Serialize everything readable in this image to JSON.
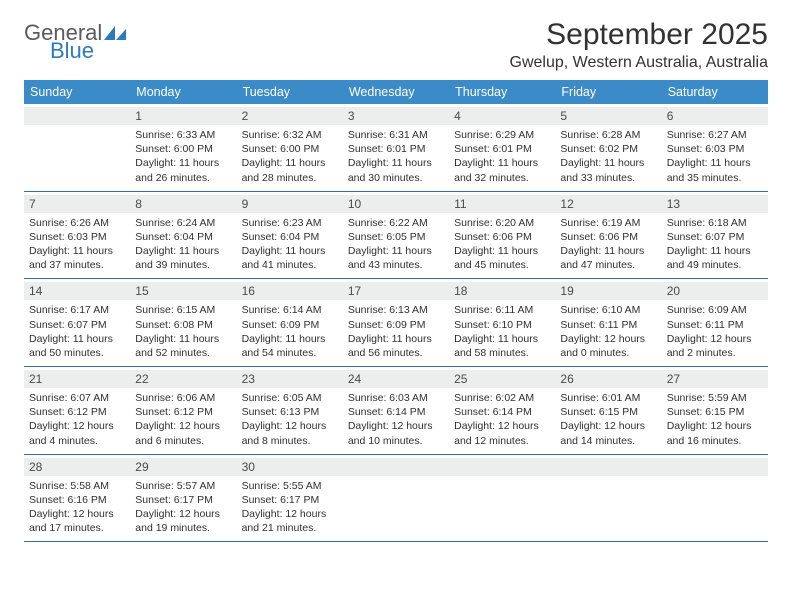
{
  "logo": {
    "word1": "General",
    "word2": "Blue"
  },
  "title": "September 2025",
  "location": "Gwelup, Western Australia, Australia",
  "colors": {
    "header_bg": "#3b8bc9",
    "header_fg": "#ffffff",
    "daynum_bg": "#eceded",
    "rule": "#2f6ea8",
    "logo_grey": "#5a5a5a",
    "logo_blue": "#2c7bbf"
  },
  "dayNames": [
    "Sunday",
    "Monday",
    "Tuesday",
    "Wednesday",
    "Thursday",
    "Friday",
    "Saturday"
  ],
  "weeks": [
    [
      {
        "n": "",
        "sunrise": "",
        "sunset": "",
        "daylight": ""
      },
      {
        "n": "1",
        "sunrise": "Sunrise: 6:33 AM",
        "sunset": "Sunset: 6:00 PM",
        "daylight": "Daylight: 11 hours and 26 minutes."
      },
      {
        "n": "2",
        "sunrise": "Sunrise: 6:32 AM",
        "sunset": "Sunset: 6:00 PM",
        "daylight": "Daylight: 11 hours and 28 minutes."
      },
      {
        "n": "3",
        "sunrise": "Sunrise: 6:31 AM",
        "sunset": "Sunset: 6:01 PM",
        "daylight": "Daylight: 11 hours and 30 minutes."
      },
      {
        "n": "4",
        "sunrise": "Sunrise: 6:29 AM",
        "sunset": "Sunset: 6:01 PM",
        "daylight": "Daylight: 11 hours and 32 minutes."
      },
      {
        "n": "5",
        "sunrise": "Sunrise: 6:28 AM",
        "sunset": "Sunset: 6:02 PM",
        "daylight": "Daylight: 11 hours and 33 minutes."
      },
      {
        "n": "6",
        "sunrise": "Sunrise: 6:27 AM",
        "sunset": "Sunset: 6:03 PM",
        "daylight": "Daylight: 11 hours and 35 minutes."
      }
    ],
    [
      {
        "n": "7",
        "sunrise": "Sunrise: 6:26 AM",
        "sunset": "Sunset: 6:03 PM",
        "daylight": "Daylight: 11 hours and 37 minutes."
      },
      {
        "n": "8",
        "sunrise": "Sunrise: 6:24 AM",
        "sunset": "Sunset: 6:04 PM",
        "daylight": "Daylight: 11 hours and 39 minutes."
      },
      {
        "n": "9",
        "sunrise": "Sunrise: 6:23 AM",
        "sunset": "Sunset: 6:04 PM",
        "daylight": "Daylight: 11 hours and 41 minutes."
      },
      {
        "n": "10",
        "sunrise": "Sunrise: 6:22 AM",
        "sunset": "Sunset: 6:05 PM",
        "daylight": "Daylight: 11 hours and 43 minutes."
      },
      {
        "n": "11",
        "sunrise": "Sunrise: 6:20 AM",
        "sunset": "Sunset: 6:06 PM",
        "daylight": "Daylight: 11 hours and 45 minutes."
      },
      {
        "n": "12",
        "sunrise": "Sunrise: 6:19 AM",
        "sunset": "Sunset: 6:06 PM",
        "daylight": "Daylight: 11 hours and 47 minutes."
      },
      {
        "n": "13",
        "sunrise": "Sunrise: 6:18 AM",
        "sunset": "Sunset: 6:07 PM",
        "daylight": "Daylight: 11 hours and 49 minutes."
      }
    ],
    [
      {
        "n": "14",
        "sunrise": "Sunrise: 6:17 AM",
        "sunset": "Sunset: 6:07 PM",
        "daylight": "Daylight: 11 hours and 50 minutes."
      },
      {
        "n": "15",
        "sunrise": "Sunrise: 6:15 AM",
        "sunset": "Sunset: 6:08 PM",
        "daylight": "Daylight: 11 hours and 52 minutes."
      },
      {
        "n": "16",
        "sunrise": "Sunrise: 6:14 AM",
        "sunset": "Sunset: 6:09 PM",
        "daylight": "Daylight: 11 hours and 54 minutes."
      },
      {
        "n": "17",
        "sunrise": "Sunrise: 6:13 AM",
        "sunset": "Sunset: 6:09 PM",
        "daylight": "Daylight: 11 hours and 56 minutes."
      },
      {
        "n": "18",
        "sunrise": "Sunrise: 6:11 AM",
        "sunset": "Sunset: 6:10 PM",
        "daylight": "Daylight: 11 hours and 58 minutes."
      },
      {
        "n": "19",
        "sunrise": "Sunrise: 6:10 AM",
        "sunset": "Sunset: 6:11 PM",
        "daylight": "Daylight: 12 hours and 0 minutes."
      },
      {
        "n": "20",
        "sunrise": "Sunrise: 6:09 AM",
        "sunset": "Sunset: 6:11 PM",
        "daylight": "Daylight: 12 hours and 2 minutes."
      }
    ],
    [
      {
        "n": "21",
        "sunrise": "Sunrise: 6:07 AM",
        "sunset": "Sunset: 6:12 PM",
        "daylight": "Daylight: 12 hours and 4 minutes."
      },
      {
        "n": "22",
        "sunrise": "Sunrise: 6:06 AM",
        "sunset": "Sunset: 6:12 PM",
        "daylight": "Daylight: 12 hours and 6 minutes."
      },
      {
        "n": "23",
        "sunrise": "Sunrise: 6:05 AM",
        "sunset": "Sunset: 6:13 PM",
        "daylight": "Daylight: 12 hours and 8 minutes."
      },
      {
        "n": "24",
        "sunrise": "Sunrise: 6:03 AM",
        "sunset": "Sunset: 6:14 PM",
        "daylight": "Daylight: 12 hours and 10 minutes."
      },
      {
        "n": "25",
        "sunrise": "Sunrise: 6:02 AM",
        "sunset": "Sunset: 6:14 PM",
        "daylight": "Daylight: 12 hours and 12 minutes."
      },
      {
        "n": "26",
        "sunrise": "Sunrise: 6:01 AM",
        "sunset": "Sunset: 6:15 PM",
        "daylight": "Daylight: 12 hours and 14 minutes."
      },
      {
        "n": "27",
        "sunrise": "Sunrise: 5:59 AM",
        "sunset": "Sunset: 6:15 PM",
        "daylight": "Daylight: 12 hours and 16 minutes."
      }
    ],
    [
      {
        "n": "28",
        "sunrise": "Sunrise: 5:58 AM",
        "sunset": "Sunset: 6:16 PM",
        "daylight": "Daylight: 12 hours and 17 minutes."
      },
      {
        "n": "29",
        "sunrise": "Sunrise: 5:57 AM",
        "sunset": "Sunset: 6:17 PM",
        "daylight": "Daylight: 12 hours and 19 minutes."
      },
      {
        "n": "30",
        "sunrise": "Sunrise: 5:55 AM",
        "sunset": "Sunset: 6:17 PM",
        "daylight": "Daylight: 12 hours and 21 minutes."
      },
      {
        "n": "",
        "sunrise": "",
        "sunset": "",
        "daylight": ""
      },
      {
        "n": "",
        "sunrise": "",
        "sunset": "",
        "daylight": ""
      },
      {
        "n": "",
        "sunrise": "",
        "sunset": "",
        "daylight": ""
      },
      {
        "n": "",
        "sunrise": "",
        "sunset": "",
        "daylight": ""
      }
    ]
  ]
}
